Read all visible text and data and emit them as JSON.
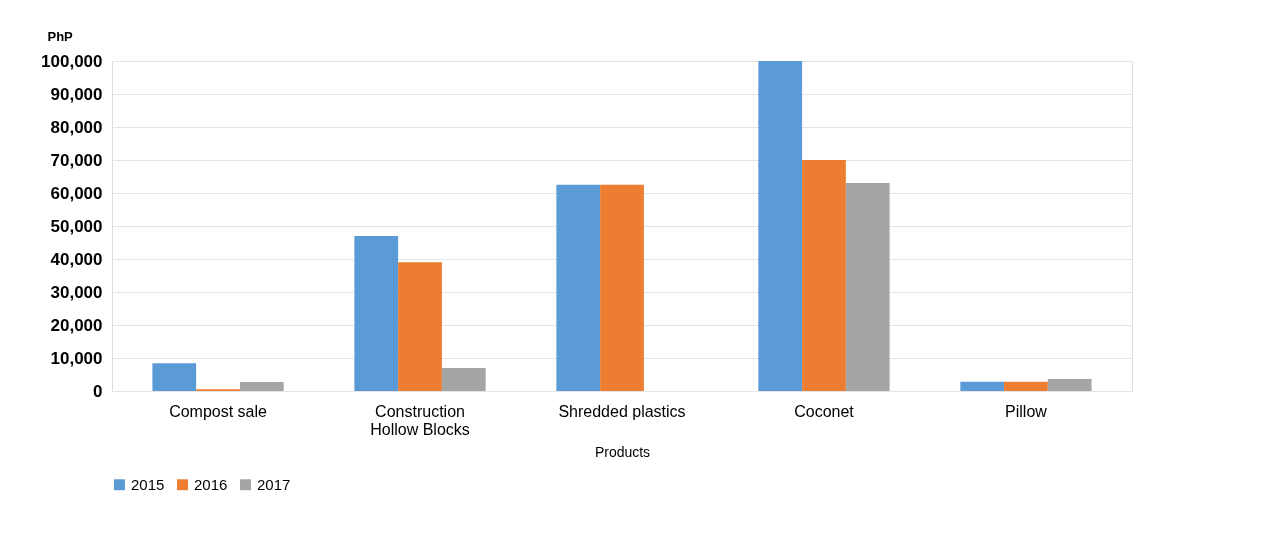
{
  "chart_data": {
    "type": "bar",
    "ylabel": "PhP",
    "xlabel": "Products",
    "categories": [
      "Compost sale",
      "Construction Hollow Blocks",
      "Shredded plastics",
      "Coconet",
      "Pillow"
    ],
    "series": [
      {
        "name": "2015",
        "color": "#5b9bd5",
        "values": [
          8400,
          47000,
          62500,
          100000,
          2800
        ]
      },
      {
        "name": "2016",
        "color": "#ed7d31",
        "values": [
          500,
          39000,
          62500,
          70000,
          2800
        ]
      },
      {
        "name": "2017",
        "color": "#a5a5a5",
        "values": [
          2700,
          7000,
          0,
          63000,
          3600
        ]
      }
    ],
    "ylim": [
      0,
      100000
    ],
    "yticks": [
      0,
      {
        "value": 10000,
        "label": "10,000"
      },
      {
        "value": 20000,
        "label": "20,000"
      },
      {
        "value": 30000,
        "label": "30,000"
      },
      {
        "value": 40000,
        "label": "40,000"
      },
      {
        "value": 50000,
        "label": "50,000"
      },
      {
        "value": 60000,
        "label": "60,000"
      },
      {
        "value": 70000,
        "label": "70,000"
      },
      {
        "value": 80000,
        "label": "80,000"
      },
      {
        "value": 90000,
        "label": "90,000"
      },
      {
        "value": 100000,
        "label": "100,000"
      }
    ],
    "grid": "y",
    "legend": "bottom"
  }
}
